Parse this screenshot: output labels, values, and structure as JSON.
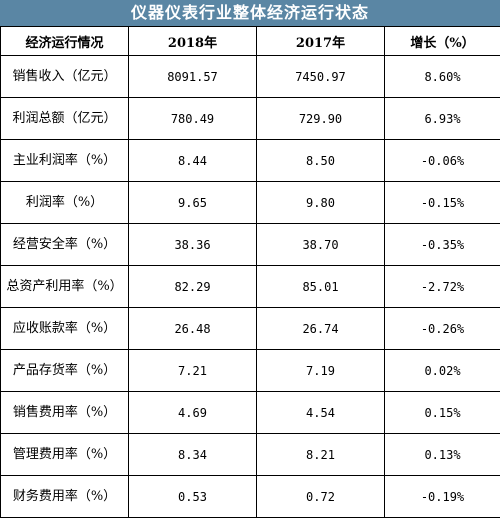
{
  "title": "仪器仪表行业整体经济运行状态",
  "columns": [
    "经济运行情况",
    "2018年",
    "2017年",
    "增长（%）"
  ],
  "rows": [
    {
      "label": "销售收入（亿元）",
      "v2018": "8091.57",
      "v2017": "7450.97",
      "growth": "8.60%"
    },
    {
      "label": "利润总额（亿元）",
      "v2018": "780.49",
      "v2017": "729.90",
      "growth": "6.93%"
    },
    {
      "label": "主业利润率（%）",
      "v2018": "8.44",
      "v2017": "8.50",
      "growth": "-0.06%"
    },
    {
      "label": "利润率（%）",
      "v2018": "9.65",
      "v2017": "9.80",
      "growth": "-0.15%"
    },
    {
      "label": "经营安全率（%）",
      "v2018": "38.36",
      "v2017": "38.70",
      "growth": "-0.35%"
    },
    {
      "label": "总资产利用率（%）",
      "v2018": "82.29",
      "v2017": "85.01",
      "growth": "-2.72%"
    },
    {
      "label": "应收账款率（%）",
      "v2018": "26.48",
      "v2017": "26.74",
      "growth": "-0.26%"
    },
    {
      "label": "产品存货率（%）",
      "v2018": "7.21",
      "v2017": "7.19",
      "growth": "0.02%"
    },
    {
      "label": "销售费用率（%）",
      "v2018": "4.69",
      "v2017": "4.54",
      "growth": "0.15%"
    },
    {
      "label": "管理费用率（%）",
      "v2018": "8.34",
      "v2017": "8.21",
      "growth": "0.13%"
    },
    {
      "label": "财务费用率（%）",
      "v2018": "0.53",
      "v2017": "0.72",
      "growth": "-0.19%"
    }
  ]
}
